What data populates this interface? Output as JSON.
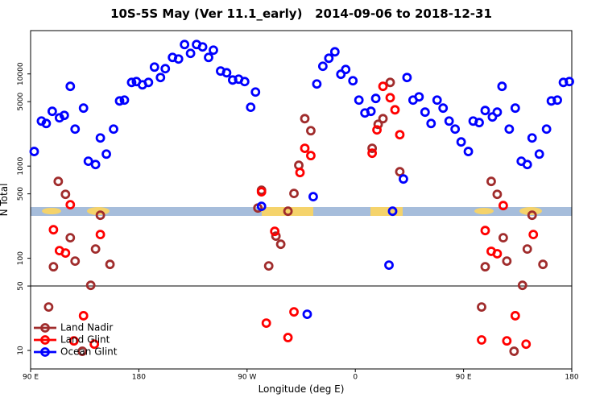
{
  "chart_data": {
    "type": "scatter",
    "title": "10S-5S May (Ver 11.1_early)   2014-09-06 to 2018-12-31",
    "x_label": "Longitude (deg E)",
    "y_label": "N Total",
    "xlim": [
      90,
      540
    ],
    "ylim": [
      6.3,
      29500
    ],
    "log_y": true,
    "xticks": [
      {
        "value": 90,
        "label": "90 E"
      },
      180,
      {
        "value": 270,
        "label": "90 W"
      },
      {
        "value": 360,
        "label": "0"
      },
      {
        "value": 450,
        "label": "90 E"
      },
      {
        "value": 540,
        "label": "180"
      }
    ],
    "yticks": [
      10,
      50,
      100,
      500,
      1000,
      5000,
      10000
    ],
    "hline": 50,
    "legend": "lower left",
    "series": [
      {
        "name": "Land Nadir",
        "color": "#a02c2c",
        "x": [
          105,
          109,
          113,
          119,
          123,
          127,
          133,
          140,
          144,
          148,
          156,
          279,
          282,
          288,
          294,
          298,
          304,
          309,
          313,
          318,
          323,
          374,
          379,
          383,
          389,
          397,
          465,
          468,
          473,
          478,
          483,
          486,
          492,
          499,
          503,
          507,
          516
        ],
        "values": [
          29.6,
          80.9,
          682,
          494,
          167,
          93.2,
          9.8,
          50.9,
          126,
          293,
          85.9,
          351,
          547,
          82.6,
          174,
          142,
          324,
          505,
          1020,
          3270,
          2420,
          1560,
          2840,
          3270,
          8090,
          869,
          29.6,
          80.9,
          682,
          494,
          167,
          93.2,
          9.8,
          50.9,
          126,
          293,
          85.9
        ]
      },
      {
        "name": "Land Glint",
        "color": "#ff0000",
        "x": [
          109,
          114,
          119,
          123,
          126,
          134,
          143,
          148,
          282,
          286,
          293,
          304,
          309,
          314,
          318,
          323,
          374,
          378,
          383,
          389,
          393,
          397,
          465,
          468,
          473,
          478,
          483,
          486,
          493,
          502,
          508
        ],
        "values": [
          204,
          121,
          114,
          381,
          12.7,
          23.8,
          11.7,
          181,
          526,
          19.8,
          196,
          13.8,
          26.2,
          851,
          1560,
          1300,
          1380,
          2470,
          7330,
          5520,
          4080,
          2190,
          13.0,
          200,
          119,
          112,
          373,
          12.7,
          23.8,
          11.7,
          181
        ]
      },
      {
        "name": "Ocean Glint",
        "color": "#0000ff",
        "x": [
          93,
          99,
          103,
          108,
          114,
          118,
          123,
          127,
          134,
          138,
          144,
          148,
          153,
          159,
          164,
          168,
          174,
          178,
          183,
          188,
          193,
          198,
          202,
          208,
          213,
          218,
          223,
          228,
          233,
          238,
          242,
          248,
          253,
          258,
          263,
          268,
          273,
          277,
          282,
          320,
          325,
          328,
          333,
          338,
          343,
          348,
          352,
          358,
          363,
          368,
          373,
          377,
          388,
          391,
          400,
          403,
          408,
          413,
          418,
          423,
          428,
          433,
          438,
          443,
          448,
          454,
          458,
          463,
          468,
          474,
          478,
          482,
          488,
          493,
          498,
          503,
          507,
          513,
          519,
          523,
          528,
          533,
          538
        ],
        "values": [
          1440,
          3080,
          2900,
          3930,
          3340,
          3550,
          7330,
          2520,
          4260,
          1130,
          1040,
          2020,
          1350,
          2520,
          5090,
          5200,
          8090,
          8260,
          7620,
          8090,
          11860,
          9140,
          11400,
          15100,
          14520,
          20840,
          16710,
          20840,
          19630,
          15100,
          18110,
          10740,
          10300,
          8590,
          8770,
          8260,
          4350,
          6360,
          366,
          24.7,
          466,
          7780,
          12110,
          14790,
          17380,
          9910,
          11170,
          8430,
          5200,
          3770,
          3930,
          5420,
          84.3,
          324,
          725,
          9140,
          5200,
          5640,
          3850,
          2900,
          5200,
          4260,
          3080,
          2520,
          1828,
          1440,
          3080,
          2965,
          4008,
          3412,
          3850,
          7330,
          2520,
          4260,
          1130,
          1040,
          2020,
          1350,
          2520,
          5090,
          5200,
          8090,
          8260
        ]
      }
    ]
  }
}
